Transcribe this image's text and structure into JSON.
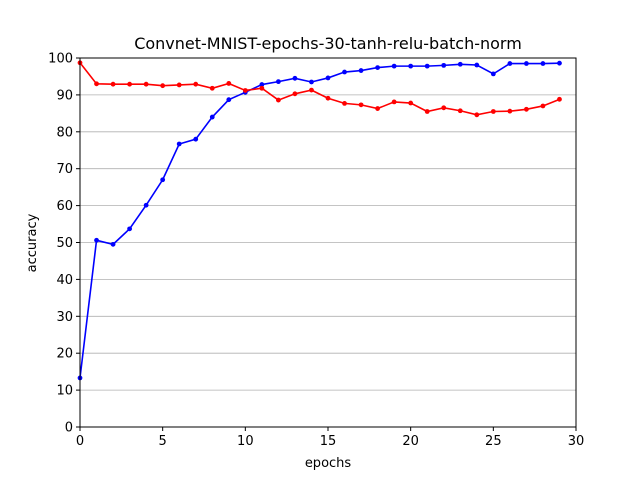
{
  "chart_data": {
    "type": "line",
    "title": "Convnet-MNIST-epochs-30-tanh-relu-batch-norm",
    "xlabel": "epochs",
    "ylabel": "accuracy",
    "xlim": [
      0,
      30
    ],
    "ylim": [
      0,
      100
    ],
    "xticks": [
      0,
      5,
      10,
      15,
      20,
      25,
      30
    ],
    "yticks": [
      0,
      10,
      20,
      30,
      40,
      50,
      60,
      70,
      80,
      90,
      100
    ],
    "grid": "horizontal",
    "x": [
      0,
      1,
      2,
      3,
      4,
      5,
      6,
      7,
      8,
      9,
      10,
      11,
      12,
      13,
      14,
      15,
      16,
      17,
      18,
      19,
      20,
      21,
      22,
      23,
      24,
      25,
      26,
      27,
      28,
      29
    ],
    "series": [
      {
        "color": "#0000ff",
        "marker": "dot",
        "values": [
          13.3,
          50.6,
          49.5,
          53.7,
          60.1,
          67.0,
          76.7,
          78.0,
          84.0,
          88.7,
          90.7,
          92.8,
          93.6,
          94.5,
          93.5,
          94.6,
          96.2,
          96.6,
          97.4,
          97.8,
          97.8,
          97.8,
          98.0,
          98.3,
          98.1,
          95.7,
          98.5,
          98.5,
          98.5,
          98.6
        ]
      },
      {
        "color": "#ff0000",
        "marker": "dot",
        "values": [
          98.7,
          93.0,
          92.9,
          92.9,
          92.9,
          92.5,
          92.7,
          92.9,
          91.8,
          93.1,
          91.2,
          91.8,
          88.6,
          90.3,
          91.3,
          89.1,
          87.7,
          87.3,
          86.3,
          88.1,
          87.8,
          85.5,
          86.5,
          85.7,
          84.6,
          85.5,
          85.6,
          86.1,
          87.0,
          88.8
        ]
      }
    ]
  }
}
